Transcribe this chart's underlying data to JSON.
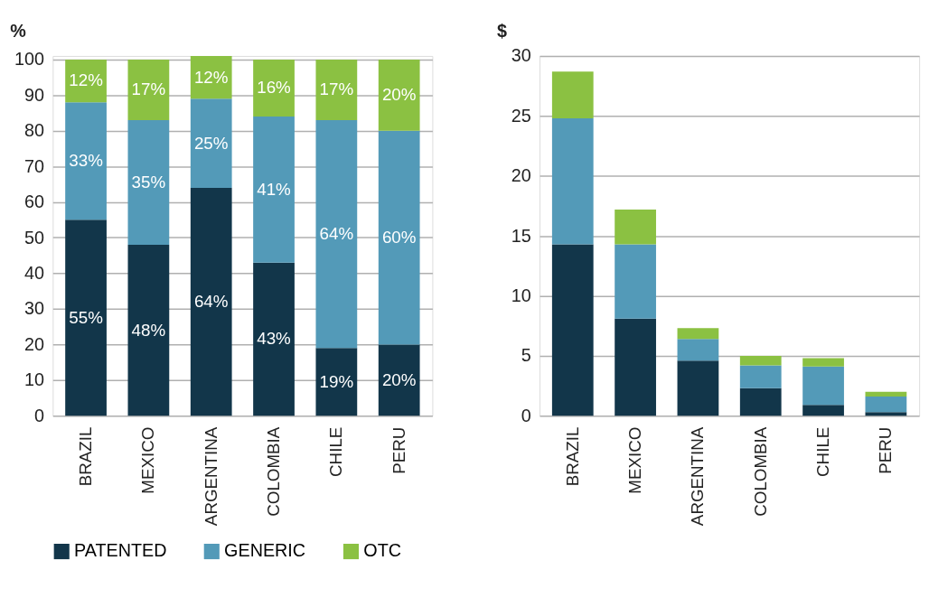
{
  "chart_data": [
    {
      "type": "bar",
      "stacked": true,
      "ylabel": "%",
      "categories": [
        "BRAZIL",
        "MEXICO",
        "ARGENTINA",
        "COLOMBIA",
        "CHILE",
        "PERU"
      ],
      "ylim": [
        0,
        101
      ],
      "yticks": [
        0,
        10,
        20,
        30,
        40,
        50,
        60,
        70,
        80,
        90,
        100
      ],
      "grid": "y",
      "legend": "bottom",
      "series": [
        {
          "name": "PATENTED",
          "color": "#12364a",
          "values": [
            55,
            48,
            64,
            43,
            19,
            20
          ],
          "value_labels": [
            "55%",
            "48%",
            "64%",
            "43%",
            "19%",
            "20%"
          ]
        },
        {
          "name": "GENERIC",
          "color": "#539ab8",
          "values": [
            33,
            35,
            25,
            41,
            64,
            60
          ],
          "value_labels": [
            "33%",
            "35%",
            "25%",
            "41%",
            "64%",
            "60%"
          ]
        },
        {
          "name": "OTC",
          "color": "#8bc142",
          "values": [
            12,
            17,
            12,
            16,
            17,
            20
          ],
          "value_labels": [
            "12%",
            "17%",
            "12%",
            "16%",
            "17%",
            "20%"
          ]
        }
      ]
    },
    {
      "type": "bar",
      "stacked": true,
      "ylabel": "$",
      "categories": [
        "BRAZIL",
        "MEXICO",
        "ARGENTINA",
        "COLOMBIA",
        "CHILE",
        "PERU"
      ],
      "ylim": [
        0,
        30
      ],
      "yticks": [
        0,
        5,
        10,
        15,
        20,
        25,
        30
      ],
      "grid": "y",
      "legend": "bottom",
      "series": [
        {
          "name": "PATENTED",
          "color": "#12364a",
          "values": [
            14.3,
            8.1,
            4.6,
            2.3,
            0.9,
            0.3
          ]
        },
        {
          "name": "GENERIC",
          "color": "#539ab8",
          "values": [
            10.5,
            6.2,
            1.8,
            1.9,
            3.2,
            1.3
          ]
        },
        {
          "name": "OTC",
          "color": "#8bc142",
          "values": [
            3.9,
            2.9,
            0.9,
            0.8,
            0.7,
            0.4
          ]
        }
      ]
    }
  ]
}
